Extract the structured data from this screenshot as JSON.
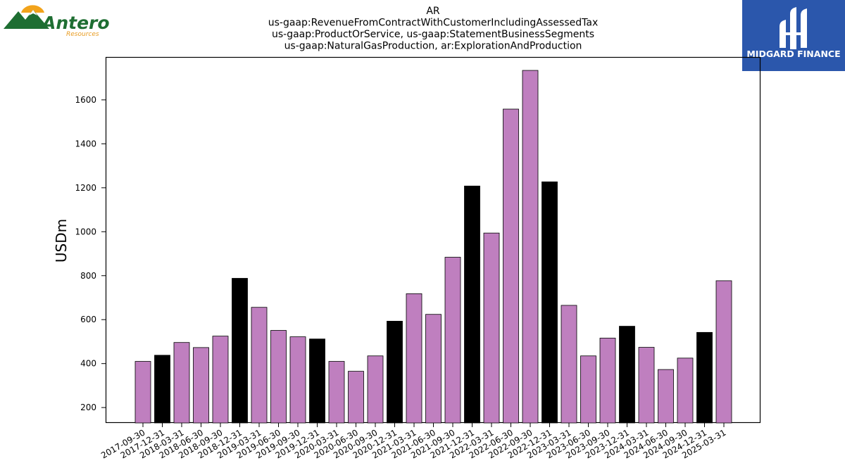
{
  "logos": {
    "left": {
      "name": "Antero",
      "subtitle": "Resources"
    },
    "right": {
      "name": "MIDGARD FINANCE",
      "bg_color": "#2b57ac"
    }
  },
  "chart_data": {
    "type": "bar",
    "title_lines": [
      "AR",
      "us-gaap:RevenueFromContractWithCustomerIncludingAssessedTax",
      "us-gaap:ProductOrService, us-gaap:StatementBusinessSegments",
      "us-gaap:NaturalGasProduction, ar:ExplorationAndProduction"
    ],
    "ylabel": "USDm",
    "xlabel": "",
    "ylim": [
      130,
      1795
    ],
    "yticks": [
      200,
      400,
      600,
      800,
      1000,
      1200,
      1400,
      1600
    ],
    "colors": {
      "quarter": "#bf7fbf",
      "year_end": "#000000",
      "edge": "#000000"
    },
    "categories": [
      "2017-09-30",
      "2017-12-31",
      "2018-03-31",
      "2018-06-30",
      "2018-09-30",
      "2018-12-31",
      "2019-03-31",
      "2019-06-30",
      "2019-09-30",
      "2019-12-31",
      "2020-03-31",
      "2020-06-30",
      "2020-09-30",
      "2020-12-31",
      "2021-03-31",
      "2021-06-30",
      "2021-09-30",
      "2021-12-31",
      "2022-03-31",
      "2022-06-30",
      "2022-09-30",
      "2022-12-31",
      "2023-03-31",
      "2023-06-30",
      "2023-09-30",
      "2023-12-31",
      "2024-03-31",
      "2024-06-30",
      "2024-09-30",
      "2024-12-31",
      "2025-03-31"
    ],
    "values": [
      410,
      438,
      496,
      473,
      525,
      788,
      656,
      551,
      522,
      512,
      410,
      365,
      435,
      593,
      718,
      624,
      884,
      1208,
      994,
      1558,
      1734,
      1227,
      665,
      435,
      516,
      570,
      474,
      373,
      425,
      542,
      777
    ],
    "grid": false,
    "legend": "none"
  }
}
